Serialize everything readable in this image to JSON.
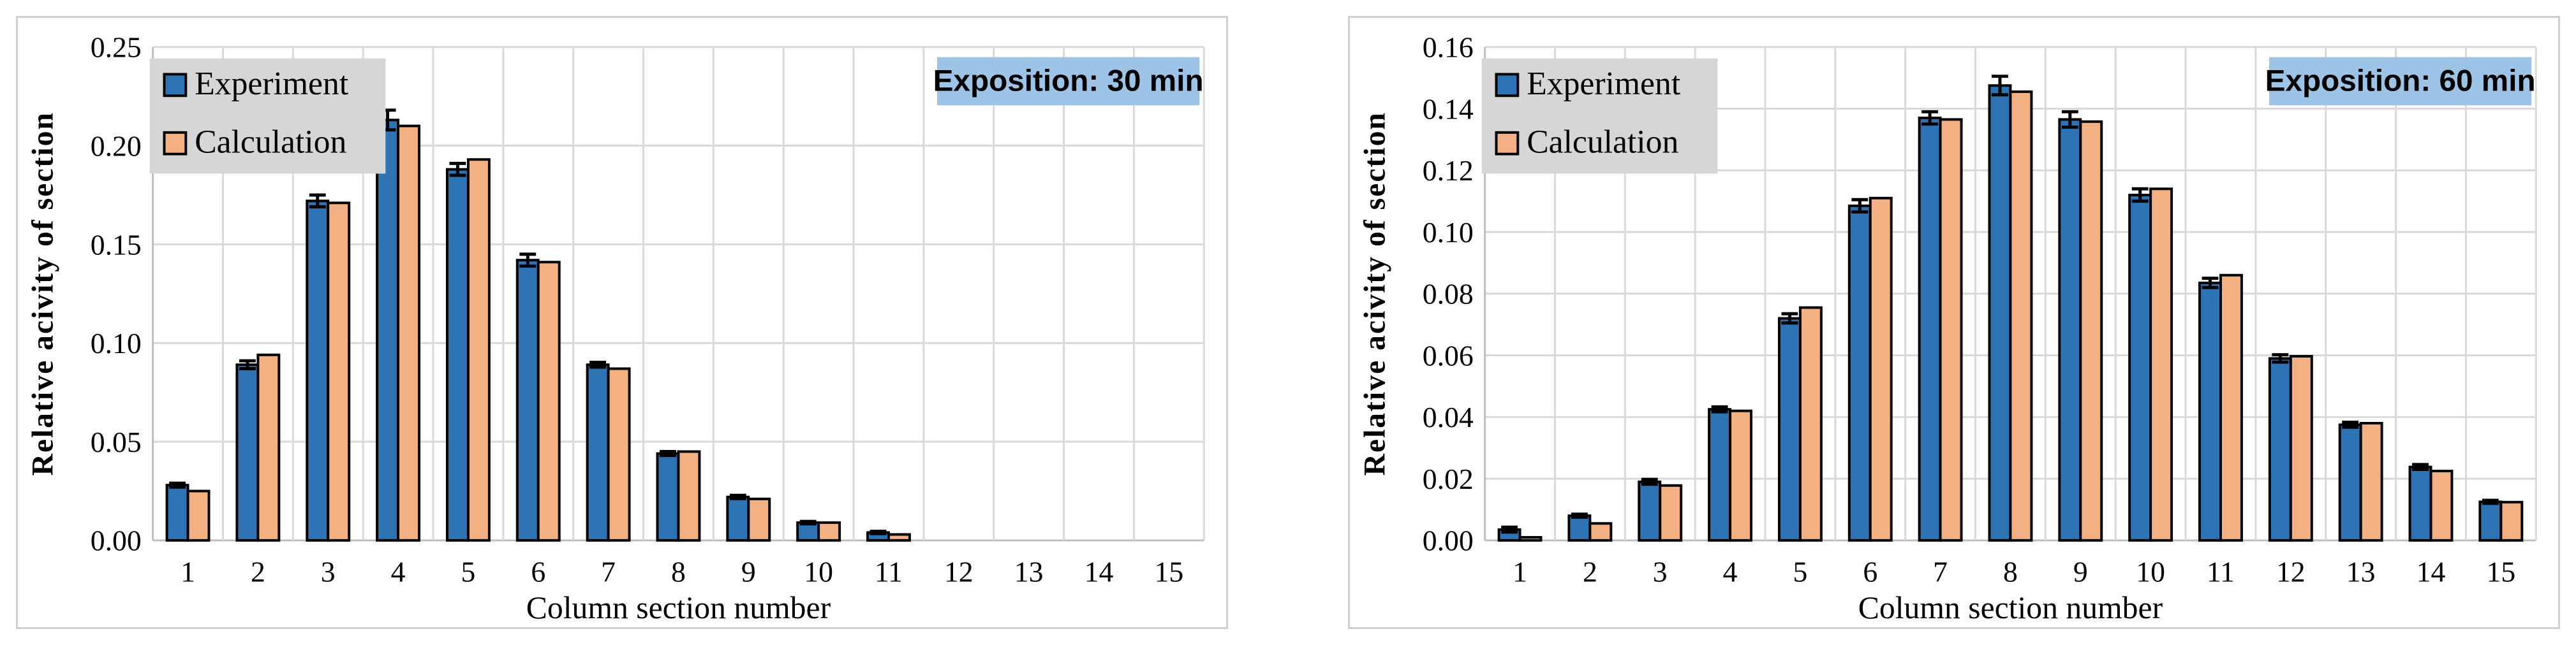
{
  "figure": {
    "description": "Two side-by-side grouped bar charts comparing Experiment vs Calculation relative activity per column section",
    "background": "#ffffff"
  },
  "colors": {
    "experiment_fill": "#2e74b5",
    "calculation_fill": "#f3b183",
    "bar_outline": "#000000",
    "gridline": "#d9d9d9",
    "axis_line": "#bfbfbf",
    "legend_bg": "#d6d6d6",
    "exposition_bg": "#9dc3e6",
    "panel_border": "#d0cece",
    "error_bar": "#000000"
  },
  "chart_data": [
    {
      "type": "bar",
      "exposition_label": "Exposition: 30 min",
      "xlabel": "Column section number",
      "ylabel": "Relative acivity of section",
      "categories": [
        "1",
        "2",
        "3",
        "4",
        "5",
        "6",
        "7",
        "8",
        "9",
        "10",
        "11",
        "12",
        "13",
        "14",
        "15"
      ],
      "ylim": [
        0,
        0.25
      ],
      "ytick_step": 0.05,
      "ytick_decimals": 2,
      "ytick_labels": [
        "0.00",
        "0.05",
        "0.10",
        "0.15",
        "0.20",
        "0.25"
      ],
      "grid": true,
      "legend_position": "upper-left",
      "legend_entries": [
        "Experiment",
        "Calculation"
      ],
      "series": [
        {
          "name": "Experiment",
          "values": [
            0.028,
            0.089,
            0.172,
            0.213,
            0.188,
            0.142,
            0.089,
            0.044,
            0.022,
            0.009,
            0.004,
            0,
            0,
            0,
            0
          ],
          "errors": [
            0.001,
            0.002,
            0.003,
            0.005,
            0.003,
            0.003,
            0.0012,
            0.001,
            0.0008,
            0.0006,
            0.0006,
            0,
            0,
            0,
            0
          ]
        },
        {
          "name": "Calculation",
          "values": [
            0.025,
            0.094,
            0.171,
            0.21,
            0.193,
            0.141,
            0.087,
            0.045,
            0.021,
            0.009,
            0.003,
            0,
            0,
            0,
            0
          ],
          "errors": []
        }
      ]
    },
    {
      "type": "bar",
      "exposition_label": "Exposition: 60 min",
      "xlabel": "Column section number",
      "ylabel": "Relative acivity of section",
      "categories": [
        "1",
        "2",
        "3",
        "4",
        "5",
        "6",
        "7",
        "8",
        "9",
        "10",
        "11",
        "12",
        "13",
        "14",
        "15"
      ],
      "ylim": [
        0,
        0.16
      ],
      "ytick_step": 0.02,
      "ytick_decimals": 2,
      "ytick_labels": [
        "0.00",
        "0.02",
        "0.04",
        "0.06",
        "0.08",
        "0.10",
        "0.12",
        "0.14",
        "0.16"
      ],
      "grid": true,
      "legend_position": "upper-left",
      "legend_entries": [
        "Experiment",
        "Calculation"
      ],
      "series": [
        {
          "name": "Experiment",
          "values": [
            0.0035,
            0.008,
            0.019,
            0.0425,
            0.072,
            0.1085,
            0.137,
            0.1475,
            0.1365,
            0.112,
            0.0835,
            0.059,
            0.0375,
            0.0238,
            0.0125
          ],
          "errors": [
            0.0008,
            0.0005,
            0.0008,
            0.0008,
            0.0015,
            0.002,
            0.002,
            0.003,
            0.0025,
            0.002,
            0.0015,
            0.0012,
            0.0008,
            0.0008,
            0.0005
          ]
        },
        {
          "name": "Calculation",
          "values": [
            0.001,
            0.0055,
            0.0178,
            0.042,
            0.0755,
            0.111,
            0.1365,
            0.1455,
            0.1358,
            0.114,
            0.086,
            0.0597,
            0.038,
            0.0225,
            0.0124
          ],
          "errors": []
        }
      ]
    }
  ]
}
